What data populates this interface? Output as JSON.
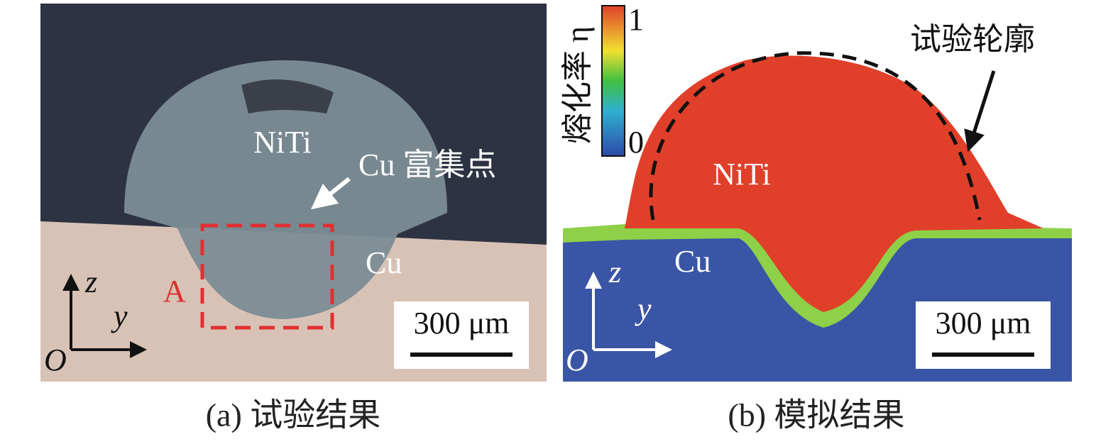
{
  "panels": [
    {
      "caption": "(a) 试验结果",
      "labels": {
        "top_material": "NiTi",
        "point": "Cu 富集点",
        "bottom_material": "Cu",
        "region": "A",
        "scale_bar": "300 μm",
        "axis_z": "z",
        "axis_y": "y",
        "origin": "O"
      }
    },
    {
      "caption": "(b) 模拟结果",
      "labels": {
        "top_material": "NiTi",
        "bottom_material": "Cu",
        "outline": "试验轮廓",
        "scale_bar": "300 μm",
        "axis_z": "z",
        "axis_y": "y",
        "origin": "O"
      },
      "colorbar": {
        "title": "熔化率 η",
        "max": "1",
        "min": "0"
      }
    }
  ]
}
